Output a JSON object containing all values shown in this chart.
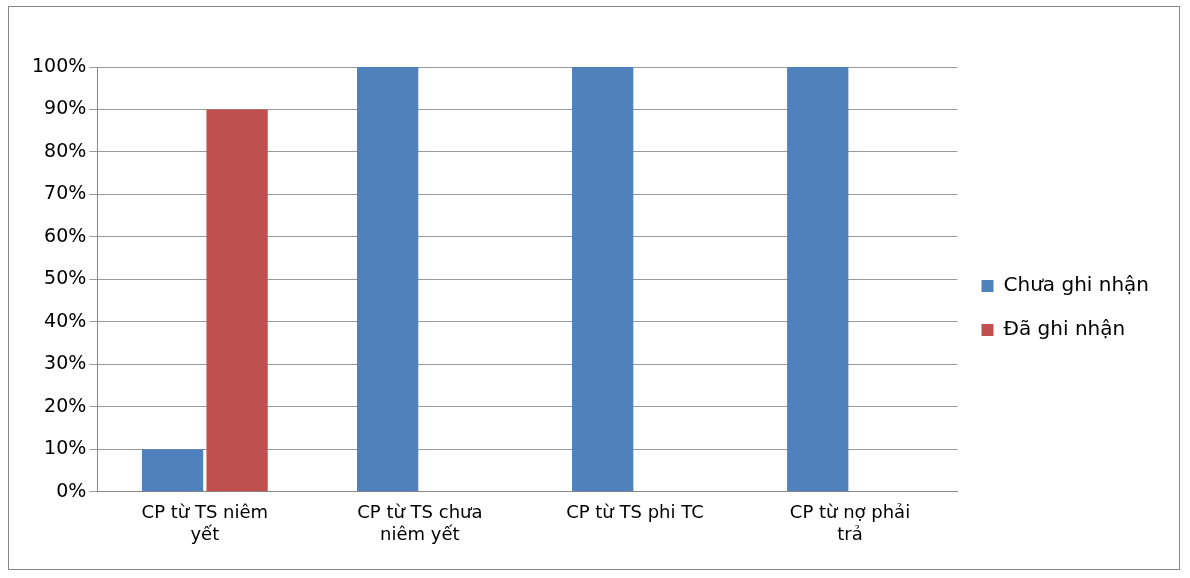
{
  "chart_data": {
    "type": "bar",
    "categories": [
      "CP từ TS niêm yết",
      "CP từ TS chưa niêm yết",
      "CP từ TS phi TC",
      "CP từ nợ phải trả"
    ],
    "series": [
      {
        "name": "Chưa ghi nhận",
        "color": "#4f81bd",
        "values": [
          10,
          100,
          100,
          100
        ]
      },
      {
        "name": "Đã ghi nhận",
        "color": "#c0504d",
        "values": [
          90,
          0,
          0,
          0
        ]
      }
    ],
    "ylim": [
      0,
      100
    ],
    "yticks": [
      {
        "value": 0,
        "label": "0%"
      },
      {
        "value": 10,
        "label": "10%"
      },
      {
        "value": 20,
        "label": "20%"
      },
      {
        "value": 30,
        "label": "30%"
      },
      {
        "value": 40,
        "label": "40%"
      },
      {
        "value": 50,
        "label": "50%"
      },
      {
        "value": 60,
        "label": "60%"
      },
      {
        "value": 70,
        "label": "70%"
      },
      {
        "value": 80,
        "label": "80%"
      },
      {
        "value": 90,
        "label": "90%"
      },
      {
        "value": 100,
        "label": "100%"
      }
    ],
    "grid": "y",
    "legend": "right"
  }
}
